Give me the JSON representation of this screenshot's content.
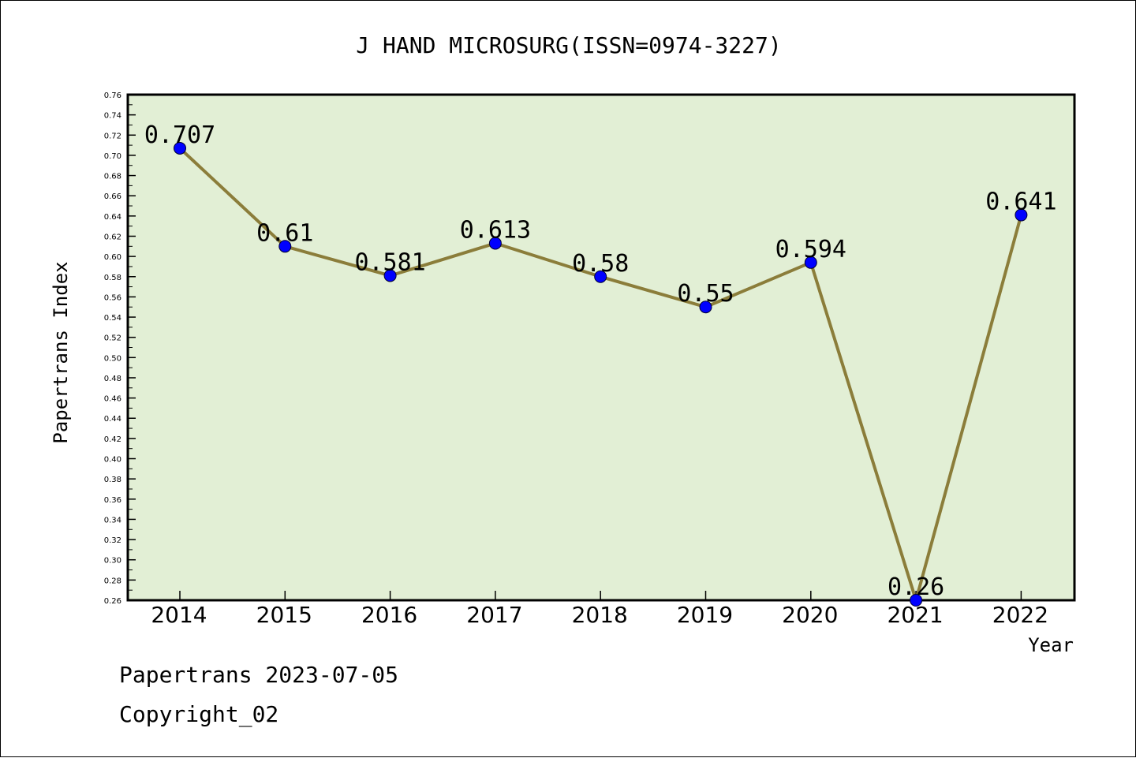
{
  "chart_data": {
    "type": "line",
    "title": "J HAND MICROSURG(ISSN=0974-3227)",
    "xlabel": "Year",
    "ylabel": "Papertrans Index",
    "categories": [
      "2014",
      "2015",
      "2016",
      "2017",
      "2018",
      "2019",
      "2020",
      "2021",
      "2022"
    ],
    "series": [
      {
        "values": [
          0.707,
          0.61,
          0.581,
          0.613,
          0.58,
          0.55,
          0.594,
          0.26,
          0.641
        ],
        "labels": [
          "0.707",
          "0.61",
          "0.581",
          "0.613",
          "0.58",
          "0.55",
          "0.594",
          "0.26",
          "0.641"
        ],
        "line_color": "#8b7d3a",
        "marker_color": "#0000ff"
      }
    ],
    "ylim": [
      0.26,
      0.76
    ],
    "yticks": [
      "0.26",
      "0.28",
      "0.30",
      "0.32",
      "0.34",
      "0.36",
      "0.38",
      "0.40",
      "0.42",
      "0.44",
      "0.46",
      "0.48",
      "0.50",
      "0.52",
      "0.54",
      "0.56",
      "0.58",
      "0.60",
      "0.62",
      "0.64",
      "0.66",
      "0.68",
      "0.70",
      "0.72",
      "0.74",
      "0.76"
    ],
    "grid": false,
    "plot_background": "#e2efd5"
  },
  "footer": {
    "line1": "Papertrans 2023-07-05",
    "line2": "Copyright_02"
  }
}
